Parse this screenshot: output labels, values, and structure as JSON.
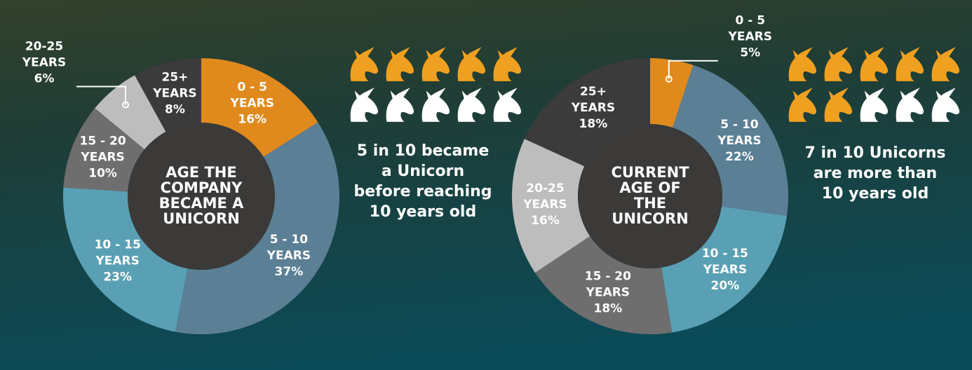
{
  "chart_data": [
    {
      "type": "donut",
      "title": [
        "AGE THE",
        "COMPANY",
        "BECAME A",
        "UNICORN"
      ],
      "categories": [
        [
          "0 - 5",
          "YEARS"
        ],
        [
          "5 - 10",
          "YEARS"
        ],
        [
          "10 - 15",
          "YEARS"
        ],
        [
          "15 - 20",
          "YEARS"
        ],
        [
          "20-25",
          "YEARS"
        ],
        [
          "25+",
          "YEARS"
        ]
      ],
      "values": [
        16,
        37,
        23,
        10,
        6,
        8
      ],
      "value_labels": [
        "16%",
        "37%",
        "23%",
        "10%",
        "6%",
        "8%"
      ],
      "colors": [
        "#e08a1e",
        "#5b7f95",
        "#5aa0b4",
        "#6e6e6e",
        "#bdbdbd",
        "#3b3b3b"
      ],
      "caption": [
        "5 in 10 became",
        "a Unicorn",
        "before reaching",
        "10 years old"
      ],
      "pictogram": {
        "total": 10,
        "highlighted": 5,
        "color": "#f0a020"
      }
    },
    {
      "type": "donut",
      "title": [
        "CURRENT",
        "AGE OF",
        "THE",
        "UNICORN"
      ],
      "categories": [
        [
          "0 - 5",
          "YEARS"
        ],
        [
          "5 - 10",
          "YEARS"
        ],
        [
          "10 - 15",
          "YEARS"
        ],
        [
          "15 - 20",
          "YEARS"
        ],
        [
          "20-25",
          "YEARS"
        ],
        [
          "25+",
          "YEARS"
        ]
      ],
      "values": [
        5,
        22,
        20,
        18,
        16,
        18
      ],
      "value_labels": [
        "5%",
        "22%",
        "20%",
        "18%",
        "16%",
        "18%"
      ],
      "colors": [
        "#e08a1e",
        "#5b7f95",
        "#5aa0b4",
        "#6e6e6e",
        "#bdbdbd",
        "#3b3b3b"
      ],
      "caption": [
        "7 in 10 Unicorns",
        "are more than",
        "10 years old"
      ],
      "pictogram": {
        "total": 10,
        "highlighted": 7,
        "color": "#f0a020"
      }
    }
  ]
}
